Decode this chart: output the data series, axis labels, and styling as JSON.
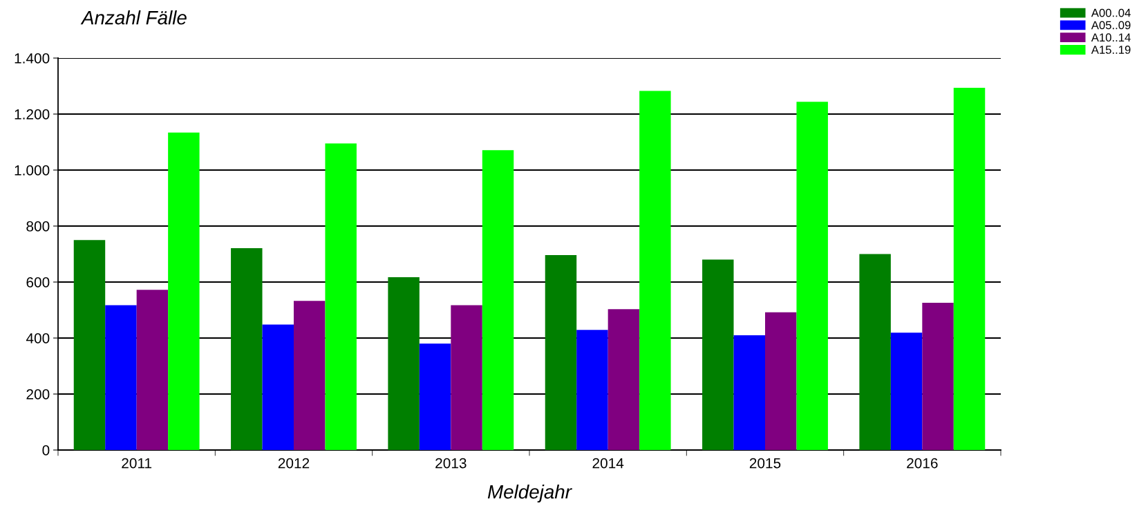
{
  "chart_data": {
    "type": "bar",
    "ylabel": "Anzahl Fälle",
    "xlabel": "Meldejahr",
    "categories": [
      "2011",
      "2012",
      "2013",
      "2014",
      "2015",
      "2016"
    ],
    "series": [
      {
        "name": "A00..04",
        "color": "#007f00",
        "values": [
          750,
          721,
          617,
          696,
          680,
          700
        ]
      },
      {
        "name": "A05..09",
        "color": "#0000ff",
        "values": [
          517,
          448,
          380,
          429,
          410,
          419
        ]
      },
      {
        "name": "A10..14",
        "color": "#800080",
        "values": [
          572,
          533,
          517,
          503,
          492,
          526
        ]
      },
      {
        "name": "A15..19",
        "color": "#00ff00",
        "values": [
          1134,
          1095,
          1071,
          1283,
          1244,
          1294
        ]
      }
    ],
    "ylim": [
      0,
      1400
    ],
    "yticks": [
      0,
      200,
      400,
      600,
      800,
      {
        "value": 1000,
        "label": "1.000"
      },
      {
        "value": 1200,
        "label": "1.200"
      },
      {
        "value": 1400,
        "label": "1.400"
      }
    ],
    "grid": "y",
    "legend": "top right"
  }
}
